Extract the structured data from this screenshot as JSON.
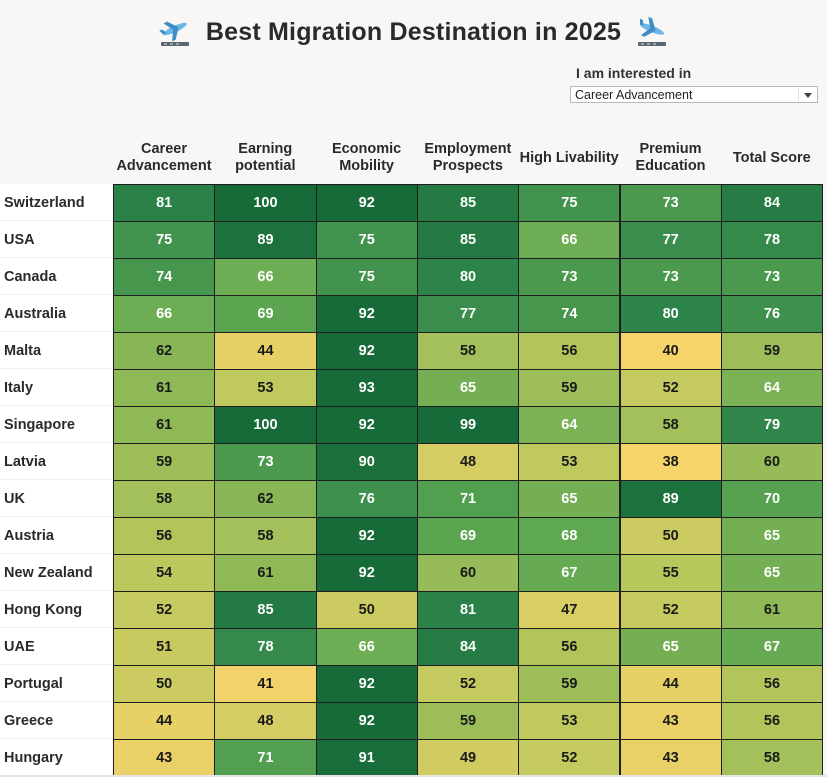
{
  "header": {
    "title": "Best Migration Destination in 2025",
    "left_icon": "airplane-departure-icon",
    "right_icon": "airplane-arrival-icon"
  },
  "filter": {
    "label": "I am interested in",
    "selected": "Career Advancement"
  },
  "colors": {
    "low": "#f5d46a",
    "mid": "#a8c55a",
    "high": "#176b38",
    "dark_text": "#1a1a1a",
    "light_text": "#ffffff"
  },
  "chart_data": {
    "type": "heatmap",
    "title": "Best Migration Destination in 2025",
    "columns": [
      "Career Advancement",
      "Earning potential",
      "Economic Mobility",
      "Employment Prospects",
      "High Livability",
      "Premium Education",
      "Total Score"
    ],
    "rows": [
      "Switzerland",
      "USA",
      "Canada",
      "Australia",
      "Malta",
      "Italy",
      "Singapore",
      "Latvia",
      "UK",
      "Austria",
      "New Zealand",
      "Hong Kong",
      "UAE",
      "Portugal",
      "Greece",
      "Hungary"
    ],
    "values": [
      [
        81,
        100,
        92,
        85,
        75,
        73,
        84
      ],
      [
        75,
        89,
        75,
        85,
        66,
        77,
        78
      ],
      [
        74,
        66,
        75,
        80,
        73,
        73,
        73
      ],
      [
        66,
        69,
        92,
        77,
        74,
        80,
        76
      ],
      [
        62,
        44,
        92,
        58,
        56,
        40,
        59
      ],
      [
        61,
        53,
        93,
        65,
        59,
        52,
        64
      ],
      [
        61,
        100,
        92,
        99,
        64,
        58,
        79
      ],
      [
        59,
        73,
        90,
        48,
        53,
        38,
        60
      ],
      [
        58,
        62,
        76,
        71,
        65,
        89,
        70
      ],
      [
        56,
        58,
        92,
        69,
        68,
        50,
        65
      ],
      [
        54,
        61,
        92,
        60,
        67,
        55,
        65
      ],
      [
        52,
        85,
        50,
        81,
        47,
        52,
        61
      ],
      [
        51,
        78,
        66,
        84,
        56,
        65,
        67
      ],
      [
        50,
        41,
        92,
        52,
        59,
        44,
        56
      ],
      [
        44,
        48,
        92,
        59,
        53,
        43,
        56
      ],
      [
        43,
        71,
        91,
        49,
        52,
        43,
        58
      ]
    ],
    "sorted_by": "Career Advancement",
    "sort_order": "descending"
  }
}
